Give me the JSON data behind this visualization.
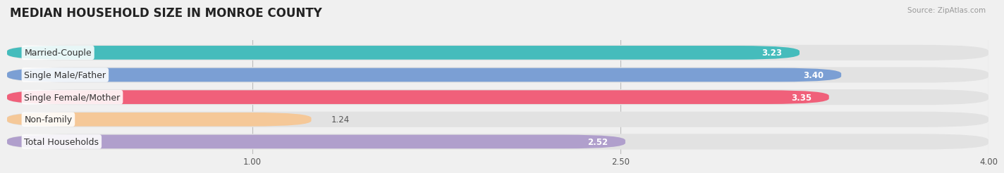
{
  "title": "MEDIAN HOUSEHOLD SIZE IN MONROE COUNTY",
  "source": "Source: ZipAtlas.com",
  "categories": [
    "Married-Couple",
    "Single Male/Father",
    "Single Female/Mother",
    "Non-family",
    "Total Households"
  ],
  "values": [
    3.23,
    3.4,
    3.35,
    1.24,
    2.52
  ],
  "bar_colors": [
    "#45BCBC",
    "#7B9FD4",
    "#F0607A",
    "#F5C898",
    "#B09FCC"
  ],
  "bar_edge_colors": [
    "#2A9A9A",
    "#5070A0",
    "#C03060",
    "#D09060",
    "#806090"
  ],
  "xlim": [
    0,
    4.0
  ],
  "xtick_values": [
    1.0,
    2.5,
    4.0
  ],
  "xtick_labels": [
    "1.00",
    "2.50",
    "4.00"
  ],
  "background_color": "#f0f0f0",
  "bar_bg_color": "#e2e2e2",
  "title_fontsize": 12,
  "label_fontsize": 9,
  "value_fontsize": 8.5,
  "bar_height": 0.62,
  "value_threshold": 2.0
}
